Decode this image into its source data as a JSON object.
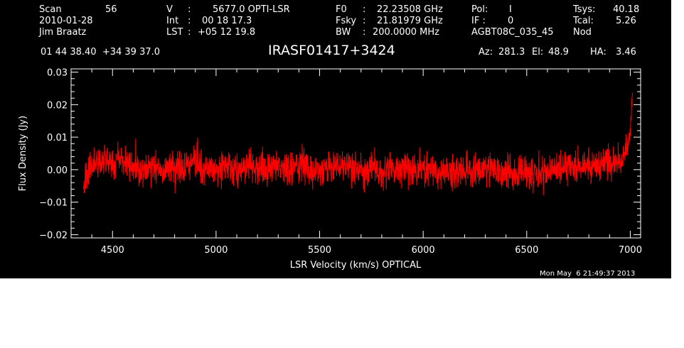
{
  "header": {
    "col1": {
      "scan_label": "Scan",
      "scan_value": "56",
      "date": "2010-01-28",
      "observer": "Jim Braatz"
    },
    "col2": {
      "v_label": "V",
      "v_value": "5677.0 OPTI-LSR",
      "int_label": "Int",
      "int_value": "00 18 17.3",
      "lst_label": "LST",
      "lst_value": "+05 12 19.8"
    },
    "col3": {
      "f0_label": "F0",
      "f0_value": "22.23508 GHz",
      "fsky_label": "Fsky",
      "fsky_value": "21.81979 GHz",
      "bw_label": "BW",
      "bw_value": "200.0000 MHz"
    },
    "col4": {
      "pol_label": "Pol:",
      "pol_value": "I",
      "if_label": "IF :",
      "if_value": "0",
      "project": "AGBT08C_035_45"
    },
    "col5": {
      "tsys_label": "Tsys:",
      "tsys_value": "40.18",
      "tcal_label": "Tcal:",
      "tcal_value": "5.26",
      "proc": "Nod"
    },
    "coords": "01 44 38.40  +34 39 37.0",
    "az_label": "Az:",
    "az_value": "281.3",
    "el_label": "El:",
    "el_value": "48.9",
    "ha_label": "HA:",
    "ha_value": "3.46"
  },
  "timestamp": "Mon May  6 21:49:37 2013",
  "chart_data": {
    "type": "line",
    "title": "IRASF01417+3424",
    "xlabel": "LSR Velocity (km/s) OPTICAL",
    "ylabel": "Flux Density (Jy)",
    "xlim": [
      4300,
      7050
    ],
    "ylim": [
      -0.021,
      0.031
    ],
    "xticks": [
      4500,
      5000,
      5500,
      6000,
      6500,
      7000
    ],
    "xtick_labels": [
      "4500",
      "5000",
      "5500",
      "6000",
      "6500",
      "7000"
    ],
    "yticks": [
      -0.02,
      -0.01,
      0.0,
      0.01,
      0.02,
      0.03
    ],
    "ytick_labels": [
      "−0.02",
      "−0.01",
      "0.00",
      "0.01",
      "0.02",
      "0.03"
    ],
    "grid": false,
    "colors": {
      "series": "#ff0000",
      "axes": "#ffffff",
      "background": "#000000"
    },
    "series": [
      {
        "x": [
          4360,
          4380,
          4400,
          4450,
          4500,
          4550,
          4600,
          4650,
          4700,
          4750,
          4800,
          4850,
          4900,
          4950,
          5000,
          5050,
          5100,
          5150,
          5200,
          5250,
          5300,
          5350,
          5400,
          5450,
          5500,
          5550,
          5600,
          5650,
          5700,
          5750,
          5800,
          5850,
          5900,
          5950,
          6000,
          6050,
          6100,
          6150,
          6200,
          6250,
          6300,
          6350,
          6400,
          6450,
          6500,
          6550,
          6600,
          6650,
          6700,
          6750,
          6800,
          6850,
          6900,
          6950,
          6980,
          7000,
          7010
        ],
        "y": [
          -0.006,
          -0.003,
          0.001,
          0.003,
          0.002,
          0.003,
          0.001,
          0.0,
          0.001,
          0.0,
          0.0,
          0.001,
          0.002,
          0.001,
          0.001,
          0.001,
          -0.001,
          0.0,
          0.001,
          0.0,
          0.001,
          0.0,
          0.001,
          0.0,
          0.0,
          0.0,
          0.001,
          0.0,
          -0.001,
          0.0,
          -0.001,
          0.0,
          0.001,
          0.0,
          0.0,
          0.0,
          0.0,
          -0.001,
          0.0,
          0.0,
          0.0,
          0.0,
          -0.001,
          -0.001,
          -0.001,
          -0.001,
          -0.001,
          0.0,
          0.001,
          0.001,
          0.001,
          0.001,
          0.002,
          0.003,
          0.006,
          0.012,
          0.022
        ]
      }
    ],
    "noise_rms": 0.0035
  }
}
